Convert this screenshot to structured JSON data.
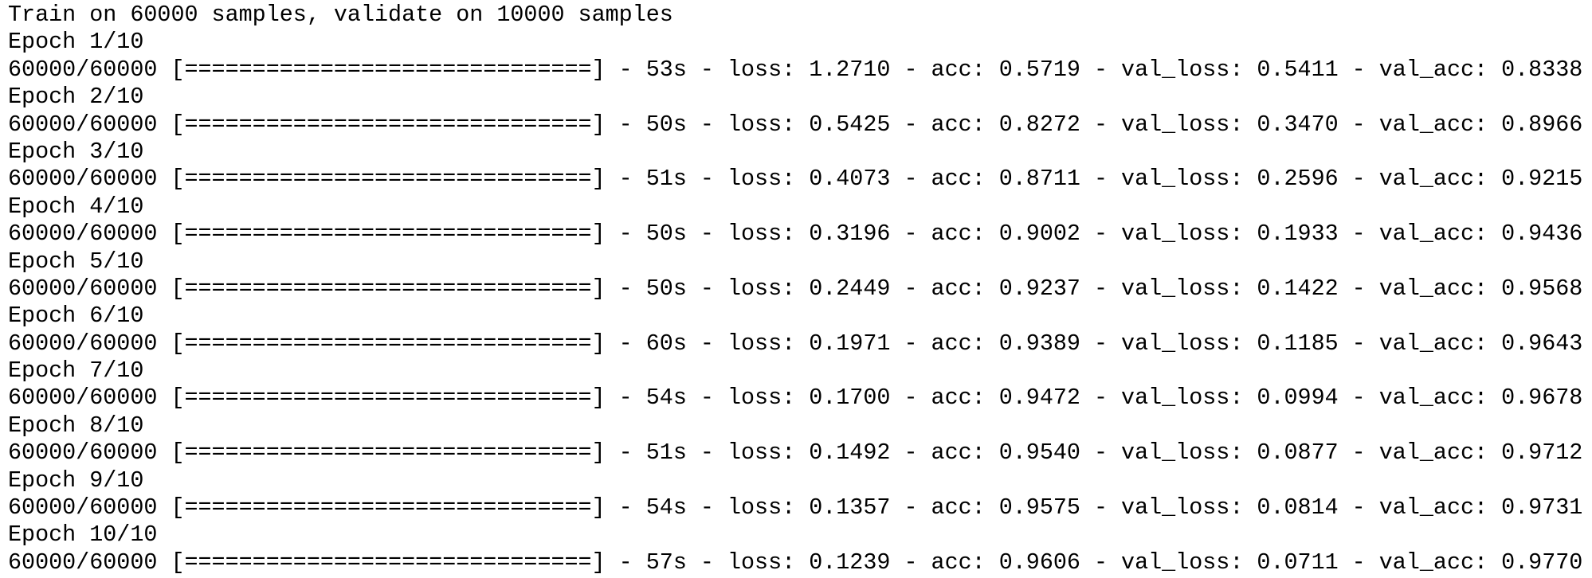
{
  "header": "Train on 60000 samples, validate on 10000 samples",
  "epochs": [
    {
      "label": "Epoch 1/10",
      "log": "60000/60000 [==============================] - 53s - loss: 1.2710 - acc: 0.5719 - val_loss: 0.5411 - val_acc: 0.8338"
    },
    {
      "label": "Epoch 2/10",
      "log": "60000/60000 [==============================] - 50s - loss: 0.5425 - acc: 0.8272 - val_loss: 0.3470 - val_acc: 0.8966"
    },
    {
      "label": "Epoch 3/10",
      "log": "60000/60000 [==============================] - 51s - loss: 0.4073 - acc: 0.8711 - val_loss: 0.2596 - val_acc: 0.9215"
    },
    {
      "label": "Epoch 4/10",
      "log": "60000/60000 [==============================] - 50s - loss: 0.3196 - acc: 0.9002 - val_loss: 0.1933 - val_acc: 0.9436"
    },
    {
      "label": "Epoch 5/10",
      "log": "60000/60000 [==============================] - 50s - loss: 0.2449 - acc: 0.9237 - val_loss: 0.1422 - val_acc: 0.9568"
    },
    {
      "label": "Epoch 6/10",
      "log": "60000/60000 [==============================] - 60s - loss: 0.1971 - acc: 0.9389 - val_loss: 0.1185 - val_acc: 0.9643"
    },
    {
      "label": "Epoch 7/10",
      "log": "60000/60000 [==============================] - 54s - loss: 0.1700 - acc: 0.9472 - val_loss: 0.0994 - val_acc: 0.9678"
    },
    {
      "label": "Epoch 8/10",
      "log": "60000/60000 [==============================] - 51s - loss: 0.1492 - acc: 0.9540 - val_loss: 0.0877 - val_acc: 0.9712"
    },
    {
      "label": "Epoch 9/10",
      "log": "60000/60000 [==============================] - 54s - loss: 0.1357 - acc: 0.9575 - val_loss: 0.0814 - val_acc: 0.9731"
    },
    {
      "label": "Epoch 10/10",
      "log": "60000/60000 [==============================] - 57s - loss: 0.1239 - acc: 0.9606 - val_loss: 0.0711 - val_acc: 0.9770"
    }
  ]
}
